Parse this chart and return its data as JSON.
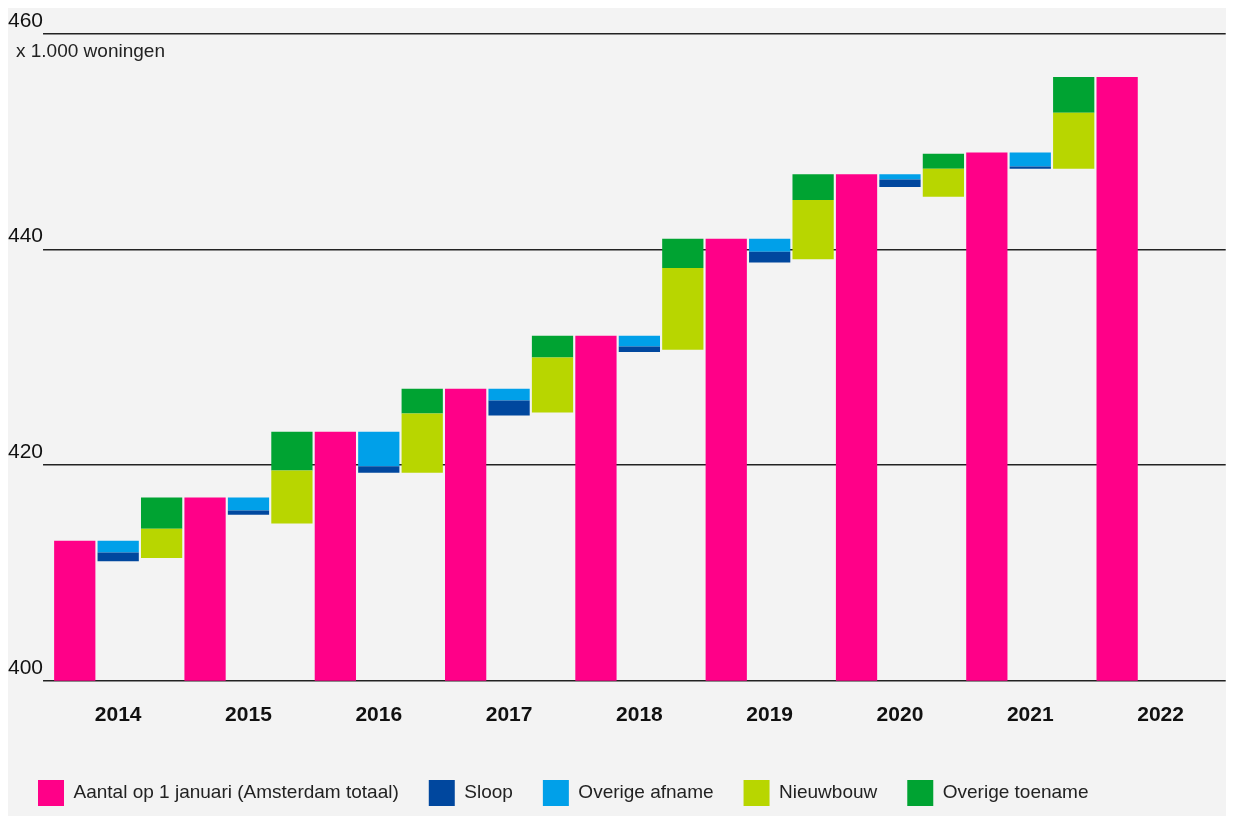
{
  "chart_data": {
    "type": "bar",
    "ylabel": "x 1.000 woningen",
    "categories": [
      null,
      "2014",
      null,
      null,
      "2015",
      null,
      null,
      "2016",
      null,
      null,
      "2017",
      null,
      null,
      "2018",
      null,
      null,
      "2019",
      null,
      null,
      "2020",
      null,
      null,
      "2021",
      null,
      null,
      "2022",
      null
    ],
    "series": [
      {
        "name": "Aantal op 1 januari (Amsterdam totaal)",
        "color": "#ff0088",
        "values": [
          413.0,
          null,
          null,
          417.0,
          null,
          null,
          423.1,
          null,
          null,
          427.1,
          null,
          null,
          432.0,
          null,
          null,
          441.0,
          null,
          null,
          447.0,
          null,
          null,
          449.0,
          null,
          null,
          456.0,
          null,
          null
        ]
      },
      {
        "name": "Sloop",
        "color": "#00479e",
        "values": [
          null,
          0.8,
          null,
          null,
          0.4,
          null,
          null,
          0.6,
          null,
          null,
          1.4,
          null,
          null,
          0.5,
          null,
          null,
          1.0,
          null,
          null,
          0.7,
          null,
          null,
          0.2,
          null,
          null,
          null,
          null
        ],
        "base": [
          null,
          411.1,
          null,
          null,
          415.4,
          null,
          null,
          419.3,
          null,
          null,
          424.6,
          null,
          null,
          430.5,
          null,
          null,
          438.8,
          null,
          null,
          445.8,
          null,
          null,
          447.5,
          null,
          null,
          null,
          null
        ]
      },
      {
        "name": "Overige afname",
        "color": "#00a0e9",
        "values": [
          null,
          1.1,
          null,
          null,
          1.2,
          null,
          null,
          3.2,
          null,
          null,
          1.1,
          null,
          null,
          1.0,
          null,
          null,
          1.2,
          null,
          null,
          0.5,
          null,
          null,
          1.3,
          null,
          null,
          null,
          null
        ],
        "base": [
          null,
          411.9,
          null,
          null,
          415.8,
          null,
          null,
          419.9,
          null,
          null,
          426.0,
          null,
          null,
          431.0,
          null,
          null,
          439.8,
          null,
          null,
          446.5,
          null,
          null,
          447.7,
          null,
          null,
          null,
          null
        ]
      },
      {
        "name": "Nieuwbouw",
        "color": "#b8d600",
        "values": [
          null,
          null,
          2.7,
          null,
          null,
          4.9,
          null,
          null,
          5.5,
          null,
          null,
          5.1,
          null,
          null,
          7.6,
          null,
          null,
          5.5,
          null,
          null,
          2.6,
          null,
          null,
          5.2,
          null,
          null,
          null
        ],
        "base": [
          null,
          null,
          411.4,
          null,
          null,
          414.6,
          null,
          null,
          419.3,
          null,
          null,
          424.9,
          null,
          null,
          430.7,
          null,
          null,
          439.1,
          null,
          null,
          444.9,
          null,
          null,
          447.5,
          null,
          null,
          null
        ]
      },
      {
        "name": "Overige toename",
        "color": "#00a332",
        "values": [
          null,
          null,
          2.9,
          null,
          null,
          3.6,
          null,
          null,
          2.3,
          null,
          null,
          2.0,
          null,
          null,
          2.7,
          null,
          null,
          2.4,
          null,
          null,
          1.4,
          null,
          null,
          3.3,
          null,
          null,
          null
        ],
        "base": [
          null,
          null,
          414.1,
          null,
          null,
          419.5,
          null,
          null,
          424.8,
          null,
          null,
          430.0,
          null,
          null,
          438.3,
          null,
          null,
          444.6,
          null,
          null,
          447.5,
          null,
          null,
          452.7,
          null,
          null,
          null
        ]
      }
    ],
    "ylim": [
      400,
      460
    ],
    "yticks": [
      400,
      420,
      440,
      460
    ],
    "grid": "y",
    "legend": "bottom"
  }
}
